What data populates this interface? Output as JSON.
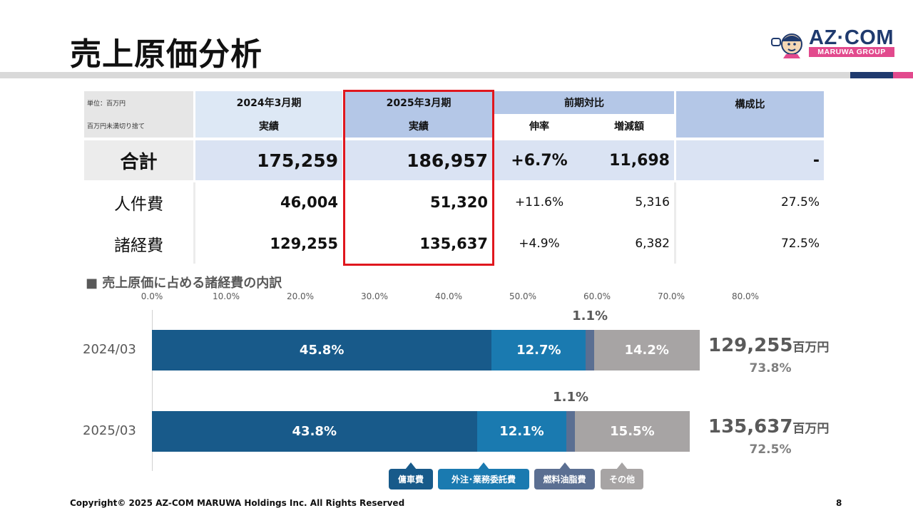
{
  "title": "売上原価分析",
  "logo": {
    "name": "AZ·COM",
    "sub": "MARUWA GROUP"
  },
  "table": {
    "unit_note_1": "単位：百万円",
    "unit_note_2": "百万円未満切り捨て",
    "col_2024_period": "2024年3月期",
    "col_2024_sub": "実績",
    "col_2025_period": "2025年3月期",
    "col_2025_sub": "実績",
    "col_yoy": "前期対比",
    "col_yoy_rate": "伸率",
    "col_yoy_diff": "増減額",
    "col_ratio": "構成比",
    "rows": [
      {
        "label": "合計",
        "v2024": "175,259",
        "v2025": "186,957",
        "rate": "+6.7%",
        "diff": "11,698",
        "ratio": "-"
      },
      {
        "label": "人件費",
        "v2024": "46,004",
        "v2025": "51,320",
        "rate": "+11.6%",
        "diff": "5,316",
        "ratio": "27.5%"
      },
      {
        "label": "諸経費",
        "v2024": "129,255",
        "v2025": "135,637",
        "rate": "+4.9%",
        "diff": "6,382",
        "ratio": "72.5%"
      }
    ]
  },
  "chart_data": {
    "type": "bar",
    "orientation": "horizontal-stacked",
    "title": "■ 売上原価に占める諸経費の内訳",
    "xlim": [
      0,
      80
    ],
    "xticks": [
      "0.0%",
      "10.0%",
      "20.0%",
      "30.0%",
      "40.0%",
      "50.0%",
      "60.0%",
      "70.0%",
      "80.0%"
    ],
    "categories": [
      "2024/03",
      "2025/03"
    ],
    "series": [
      {
        "name": "傭車費",
        "color": "#185a8a",
        "values": [
          45.8,
          43.8
        ],
        "labels": [
          "45.8%",
          "43.8%"
        ]
      },
      {
        "name": "外注･業務委託費",
        "color": "#1a7ab0",
        "values": [
          12.7,
          12.1
        ],
        "labels": [
          "12.7%",
          "12.1%"
        ]
      },
      {
        "name": "燃料油脂費",
        "color": "#5b6f92",
        "values": [
          1.1,
          1.1
        ],
        "labels": [
          "1.1%",
          "1.1%"
        ]
      },
      {
        "name": "その他",
        "color": "#a7a4a4",
        "values": [
          14.2,
          15.5
        ],
        "labels": [
          "14.2%",
          "15.5%"
        ]
      }
    ],
    "totals": [
      {
        "amount": "129,255",
        "unit": "百万円",
        "share": "73.8%"
      },
      {
        "amount": "135,637",
        "unit": "百万円",
        "share": "72.5%"
      }
    ]
  },
  "footer": {
    "copyright": "Copyright© 2025 AZ-COM MARUWA Holdings Inc. All Rights Reserved",
    "page": "8"
  }
}
